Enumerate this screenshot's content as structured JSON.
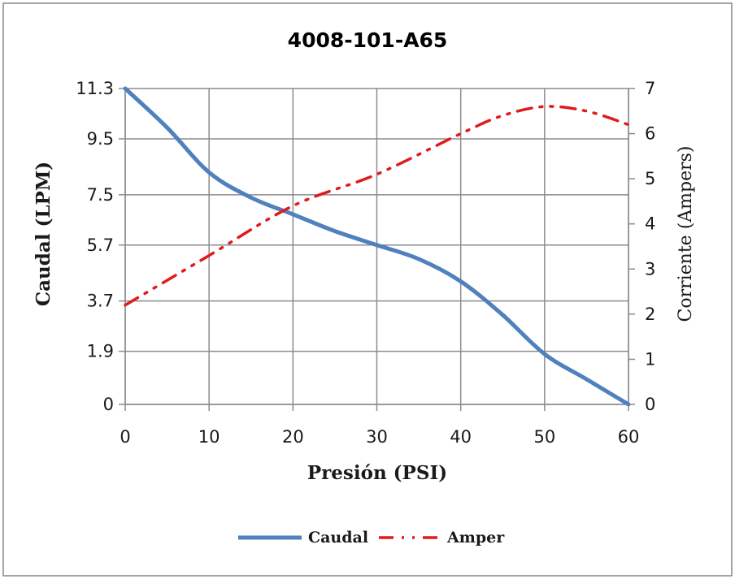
{
  "chart_data": {
    "type": "line",
    "title": "4008-101-A65",
    "xlabel": "Presión (PSI)",
    "ylabel": "Caudal (LPM)",
    "ylabel_right": "Corriente (Ampers)",
    "xlim": [
      0,
      60
    ],
    "ylim": [
      0,
      11.3
    ],
    "ylim_right": [
      0,
      7
    ],
    "x_ticks": [
      "0",
      "10",
      "20",
      "30",
      "40",
      "50",
      "60"
    ],
    "y_ticks": [
      "0",
      "1.9",
      "3.7",
      "5.7",
      "7.5",
      "9.5",
      "11.3"
    ],
    "y_tick_values": [
      0,
      1.9,
      3.7,
      5.7,
      7.5,
      9.5,
      11.3
    ],
    "y_right_ticks": [
      "0",
      "1",
      "2",
      "3",
      "4",
      "5",
      "6",
      "7"
    ],
    "grid": true,
    "legend_position": "bottom",
    "series": [
      {
        "name": "Caudal",
        "axis": "left",
        "color": "#4f81bd",
        "style": "solid",
        "x": [
          0,
          5,
          10,
          15,
          20,
          25,
          30,
          35,
          40,
          45,
          50,
          55,
          60
        ],
        "values": [
          11.3,
          9.9,
          8.3,
          7.4,
          6.8,
          6.2,
          5.7,
          5.2,
          4.4,
          3.2,
          1.8,
          0.9,
          0.0
        ]
      },
      {
        "name": "Amper",
        "axis": "right",
        "color": "#e01b1b",
        "style": "dash-dot-dot",
        "x": [
          0,
          10,
          20,
          30,
          40,
          45,
          50,
          55,
          60
        ],
        "values": [
          2.2,
          3.3,
          4.4,
          5.1,
          6.0,
          6.4,
          6.6,
          6.5,
          6.2
        ]
      }
    ]
  }
}
